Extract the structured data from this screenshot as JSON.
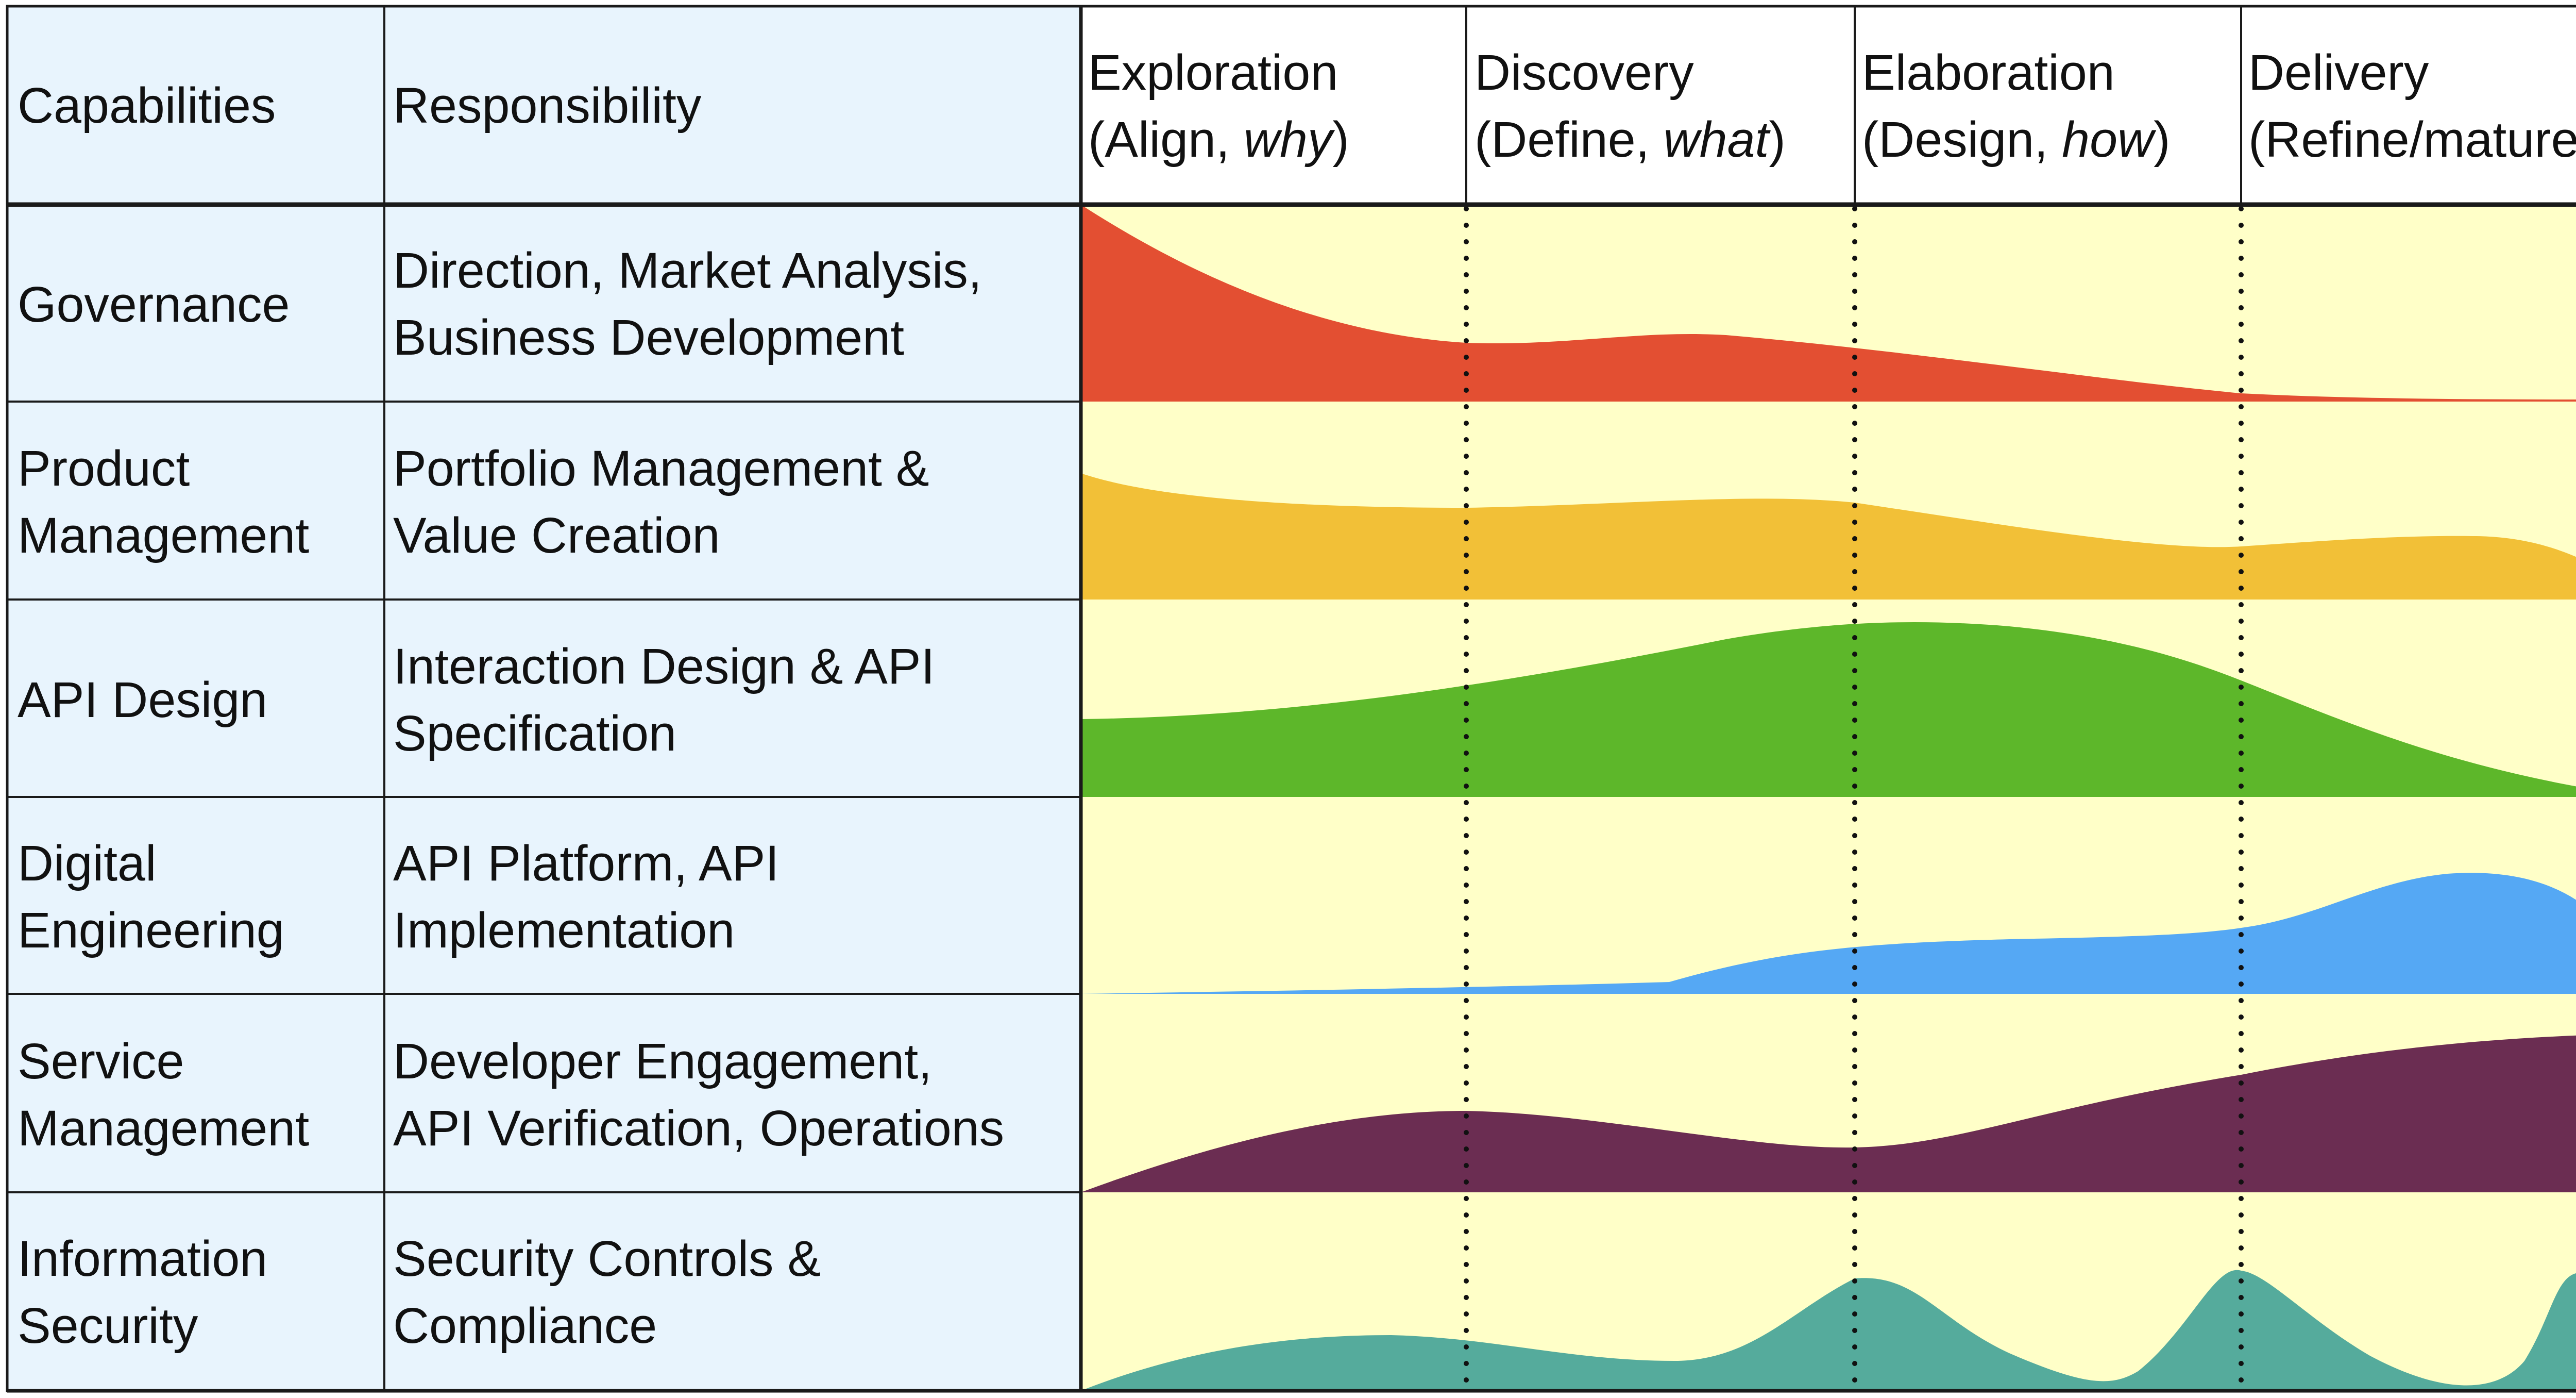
{
  "header": {
    "capabilities": "Capabilities",
    "responsibility": "Responsibility",
    "phases": [
      {
        "line1": "Exploration",
        "line2_prefix": "(Align, ",
        "line2_em": "why",
        "line2_suffix": ")"
      },
      {
        "line1": "Discovery",
        "line2_prefix": "(Define, ",
        "line2_em": "what",
        "line2_suffix": ")"
      },
      {
        "line1": "Elaboration",
        "line2_prefix": "(Design, ",
        "line2_em": "how",
        "line2_suffix": ")"
      },
      {
        "line1": "Delivery",
        "line2_prefix": "(Refine/mature)",
        "line2_em": "",
        "line2_suffix": ""
      }
    ]
  },
  "rows": [
    {
      "cap1": "Governance",
      "cap2": "",
      "resp1": "Direction, Market Analysis,",
      "resp2": "Business Development",
      "color": "#e34f32"
    },
    {
      "cap1": "Product",
      "cap2": "Management",
      "resp1": "Portfolio Management &",
      "resp2": "Value Creation",
      "color": "#f2c037"
    },
    {
      "cap1": "API Design",
      "cap2": "",
      "resp1": "Interaction Design & API",
      "resp2": "Specification",
      "color": "#5db72a"
    },
    {
      "cap1": "Digital",
      "cap2": "Engineering",
      "resp1": "API Platform, API",
      "resp2": "Implementation",
      "color": "#55a8f4"
    },
    {
      "cap1": "Service",
      "cap2": "Management",
      "resp1": "Developer Engagement,",
      "resp2": "API Verification, Operations",
      "color": "#6b2d52"
    },
    {
      "cap1": "Information",
      "cap2": "Security",
      "resp1": "Security Controls &",
      "resp2": "Compliance",
      "color": "#55ab9c"
    }
  ],
  "colors": {
    "cell_background": "#e8f4fd",
    "chart_background": "#ffffc8",
    "grid_line": "#1a1a1a",
    "phase_divider": "#111111"
  }
}
